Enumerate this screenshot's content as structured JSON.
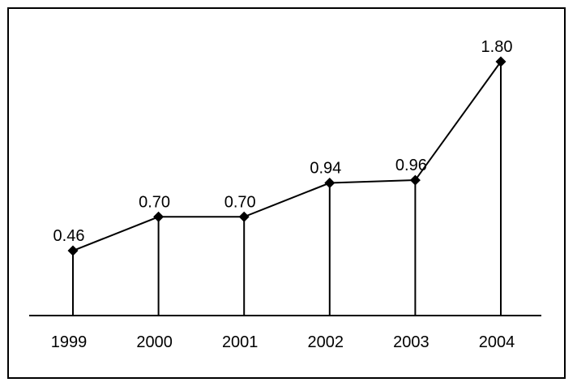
{
  "chart_data": {
    "type": "line",
    "title": "",
    "xlabel": "",
    "ylabel": "",
    "categories": [
      "1999",
      "2000",
      "2001",
      "2002",
      "2003",
      "2004"
    ],
    "values": [
      0.46,
      0.7,
      0.7,
      0.94,
      0.96,
      1.8
    ],
    "value_labels": [
      "0.46",
      "0.70",
      "0.70",
      "0.94",
      "0.96",
      "1.80"
    ],
    "ylim": [
      0,
      1.8
    ],
    "grid": false,
    "legend": "none",
    "marker": "diamond",
    "drop_lines": true,
    "colors": {
      "line": "#000000",
      "marker": "#000000"
    }
  }
}
